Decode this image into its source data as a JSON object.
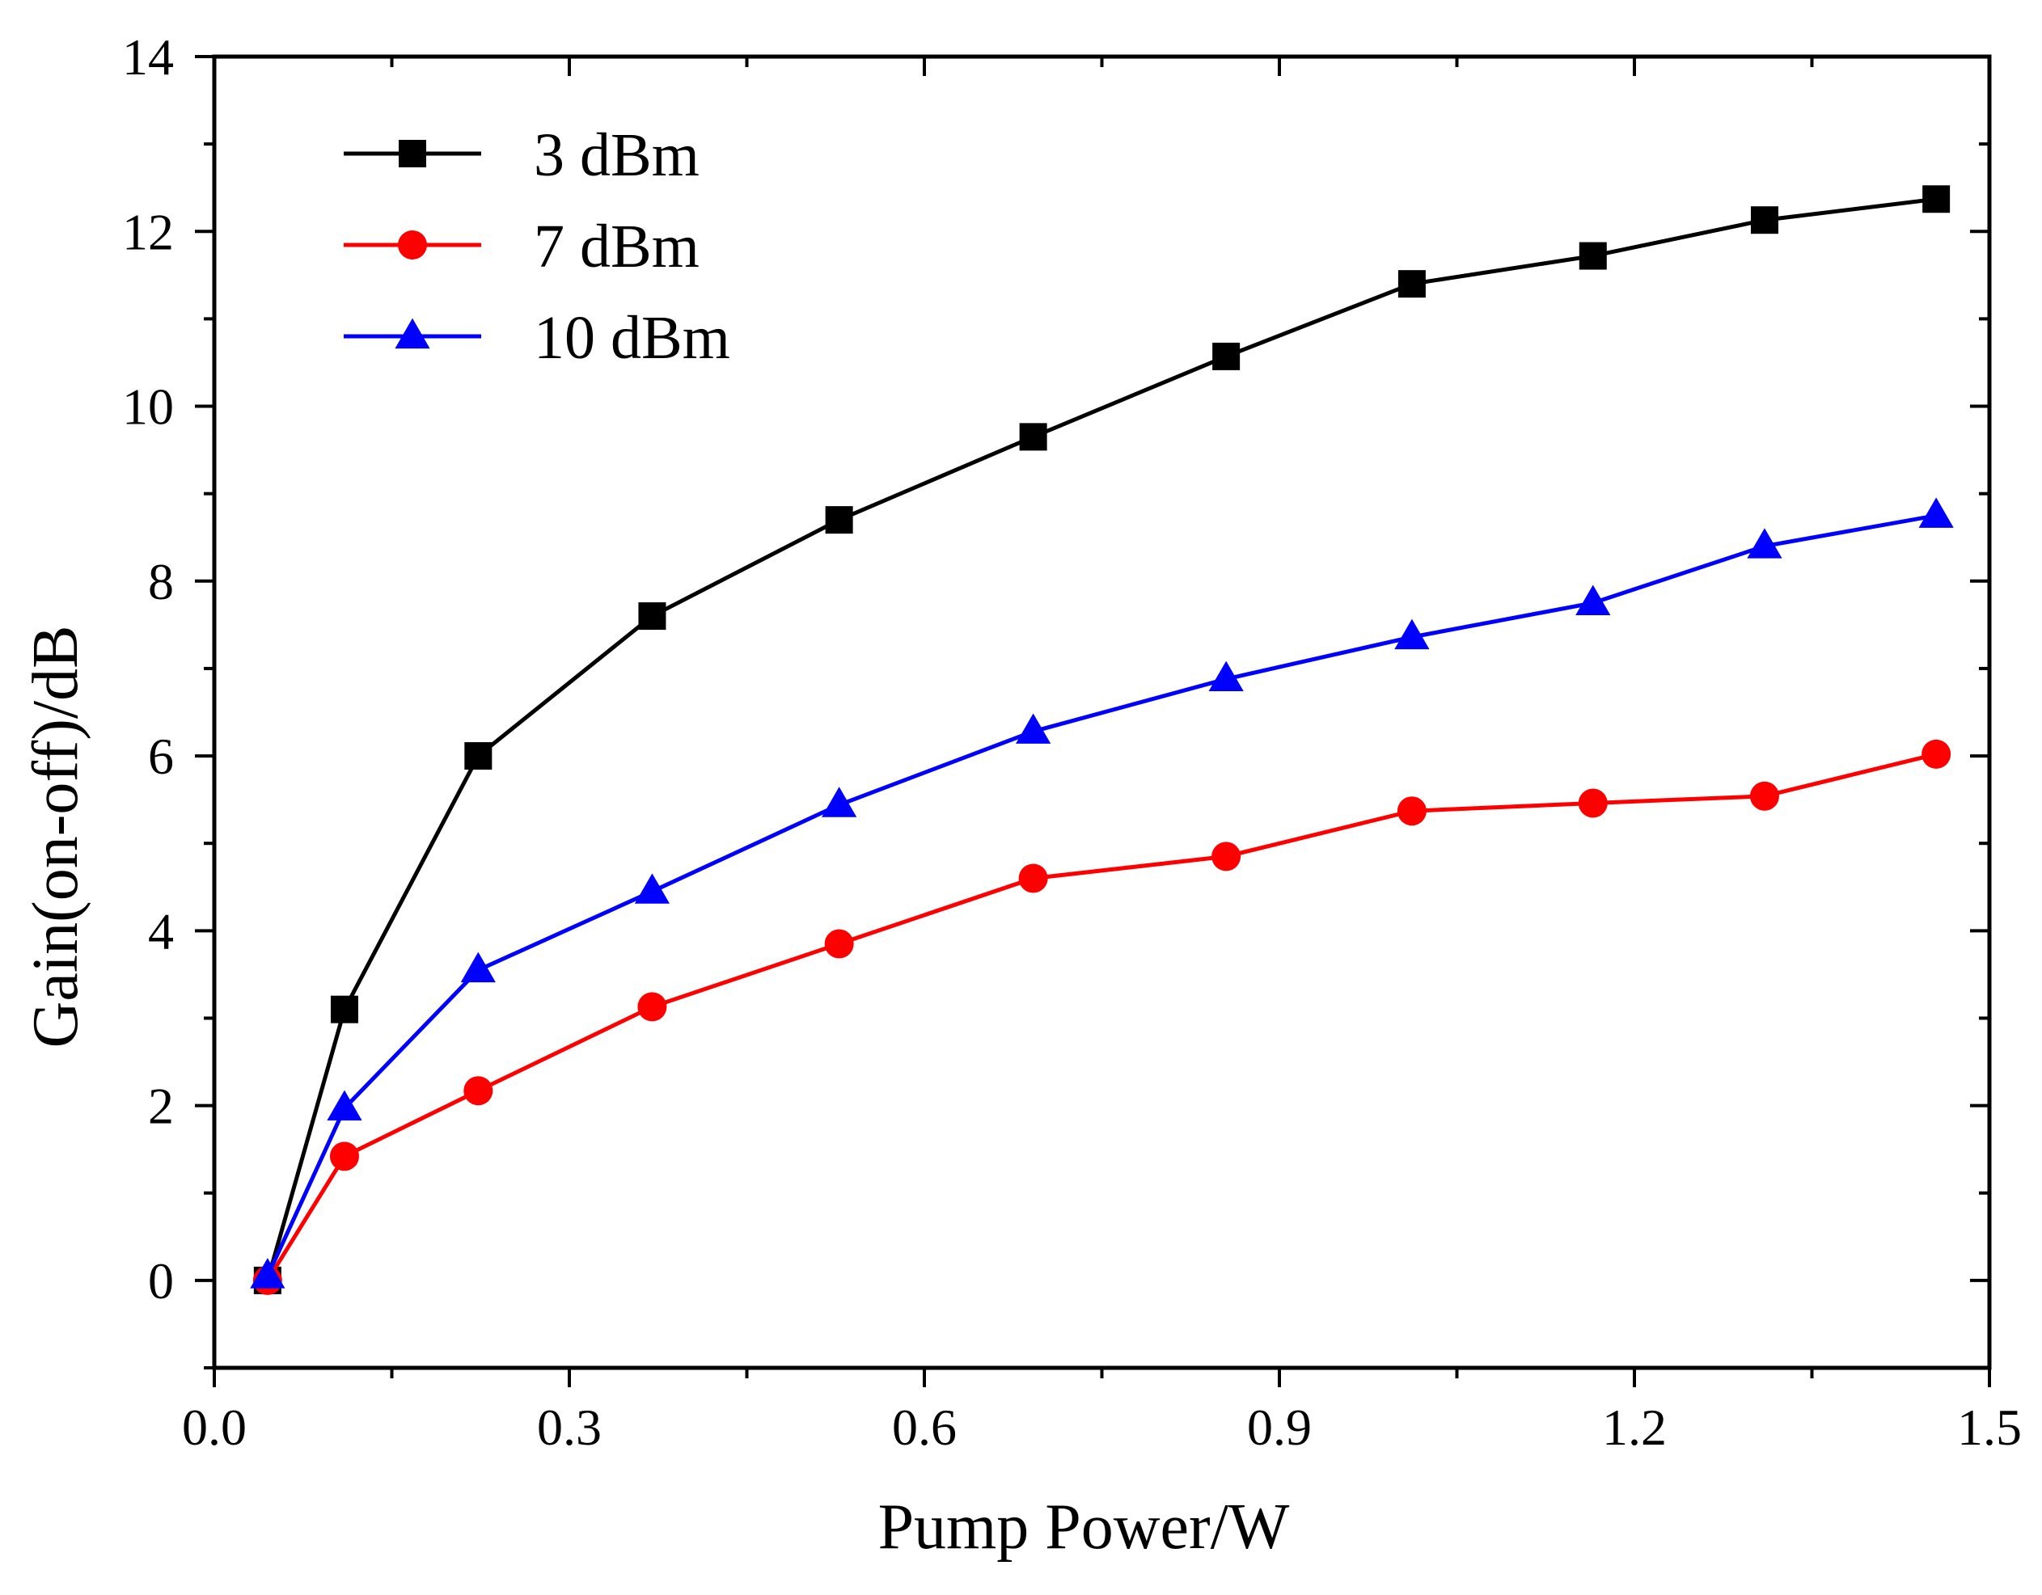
{
  "chart_data": {
    "type": "line",
    "title": "",
    "xlabel": "Pump Power/W",
    "ylabel": "Gain(on-off)/dB",
    "xlim": [
      0.0,
      1.5
    ],
    "ylim": [
      -1,
      14
    ],
    "xticks": [
      0.0,
      0.3,
      0.6,
      0.9,
      1.2,
      1.5
    ],
    "xtick_labels": [
      "0.0",
      "0.3",
      "0.6",
      "0.9",
      "1.2",
      "1.5"
    ],
    "yticks": [
      0,
      2,
      4,
      6,
      8,
      10,
      12,
      14
    ],
    "ytick_labels": [
      "0",
      "2",
      "4",
      "6",
      "8",
      "10",
      "12",
      "14"
    ],
    "grid": false,
    "legend_position": "top-left",
    "series": [
      {
        "name": "3 dBm",
        "color": "#000000",
        "marker": "square",
        "x": [
          0.045,
          0.11,
          0.223,
          0.37,
          0.528,
          0.692,
          0.855,
          1.012,
          1.165,
          1.31,
          1.455
        ],
        "y": [
          0.0,
          3.1,
          6.0,
          7.6,
          8.7,
          9.65,
          10.57,
          11.4,
          11.72,
          12.13,
          12.37
        ]
      },
      {
        "name": "7 dBm",
        "color": "#ff0000",
        "marker": "circle",
        "x": [
          0.045,
          0.11,
          0.223,
          0.37,
          0.528,
          0.692,
          0.855,
          1.012,
          1.165,
          1.31,
          1.455
        ],
        "y": [
          0.0,
          1.42,
          2.17,
          3.13,
          3.85,
          4.6,
          4.85,
          5.37,
          5.46,
          5.54,
          6.02
        ]
      },
      {
        "name": "10 dBm",
        "color": "#0000ff",
        "marker": "triangle",
        "x": [
          0.045,
          0.11,
          0.223,
          0.37,
          0.528,
          0.692,
          0.855,
          1.012,
          1.165,
          1.31,
          1.455
        ],
        "y": [
          0.05,
          1.97,
          3.55,
          4.45,
          5.44,
          6.28,
          6.88,
          7.36,
          7.75,
          8.4,
          8.75
        ]
      }
    ]
  }
}
